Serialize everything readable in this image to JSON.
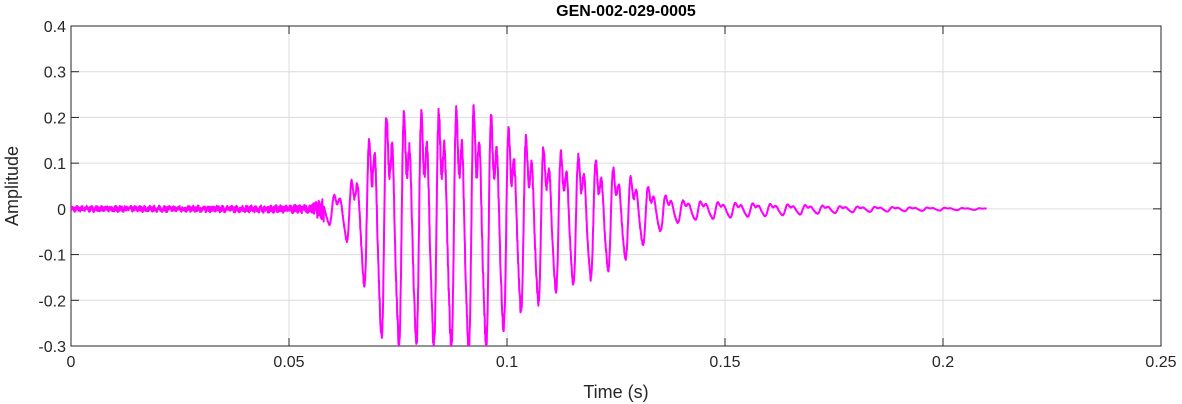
{
  "chart_data": {
    "type": "line",
    "title": "GEN-002-029-0005",
    "xlabel": "Time (s)",
    "ylabel": "Amplitude",
    "xlim": [
      0,
      0.25
    ],
    "ylim": [
      -0.3,
      0.4
    ],
    "xticks": [
      0,
      0.05,
      0.1,
      0.15,
      0.2,
      0.25
    ],
    "xtick_labels": [
      "0",
      "0.05",
      "0.1",
      "0.15",
      "0.2",
      "0.25"
    ],
    "yticks": [
      -0.3,
      -0.2,
      -0.1,
      0,
      0.1,
      0.2,
      0.3,
      0.4
    ],
    "ytick_labels": [
      "-0.3",
      "-0.2",
      "-0.1",
      "0",
      "0.1",
      "0.2",
      "0.3",
      "0.4"
    ],
    "grid": true,
    "series": [
      {
        "color": "#ff00ff",
        "x_start": 0,
        "x_end": 0.21,
        "envelope": [
          {
            "t": 0.0,
            "a": 0.005
          },
          {
            "t": 0.04,
            "a": 0.006
          },
          {
            "t": 0.055,
            "a": 0.008
          },
          {
            "t": 0.058,
            "a": 0.03
          },
          {
            "t": 0.062,
            "a": 0.06
          },
          {
            "t": 0.065,
            "a": 0.11
          },
          {
            "t": 0.067,
            "a": 0.18
          },
          {
            "t": 0.07,
            "a": 0.3
          },
          {
            "t": 0.073,
            "a": 0.34
          },
          {
            "t": 0.078,
            "a": 0.33
          },
          {
            "t": 0.082,
            "a": 0.34
          },
          {
            "t": 0.086,
            "a": 0.34
          },
          {
            "t": 0.09,
            "a": 0.35
          },
          {
            "t": 0.094,
            "a": 0.35
          },
          {
            "t": 0.098,
            "a": 0.31
          },
          {
            "t": 0.102,
            "a": 0.26
          },
          {
            "t": 0.106,
            "a": 0.24
          },
          {
            "t": 0.11,
            "a": 0.21
          },
          {
            "t": 0.115,
            "a": 0.19
          },
          {
            "t": 0.12,
            "a": 0.17
          },
          {
            "t": 0.125,
            "a": 0.14
          },
          {
            "t": 0.13,
            "a": 0.1
          },
          {
            "t": 0.133,
            "a": 0.07
          },
          {
            "t": 0.136,
            "a": 0.05
          },
          {
            "t": 0.14,
            "a": 0.03
          },
          {
            "t": 0.15,
            "a": 0.022
          },
          {
            "t": 0.165,
            "a": 0.015
          },
          {
            "t": 0.18,
            "a": 0.008
          },
          {
            "t": 0.195,
            "a": 0.005
          },
          {
            "t": 0.21,
            "a": 0.002
          }
        ],
        "fundamental_hz": 250
      }
    ]
  }
}
